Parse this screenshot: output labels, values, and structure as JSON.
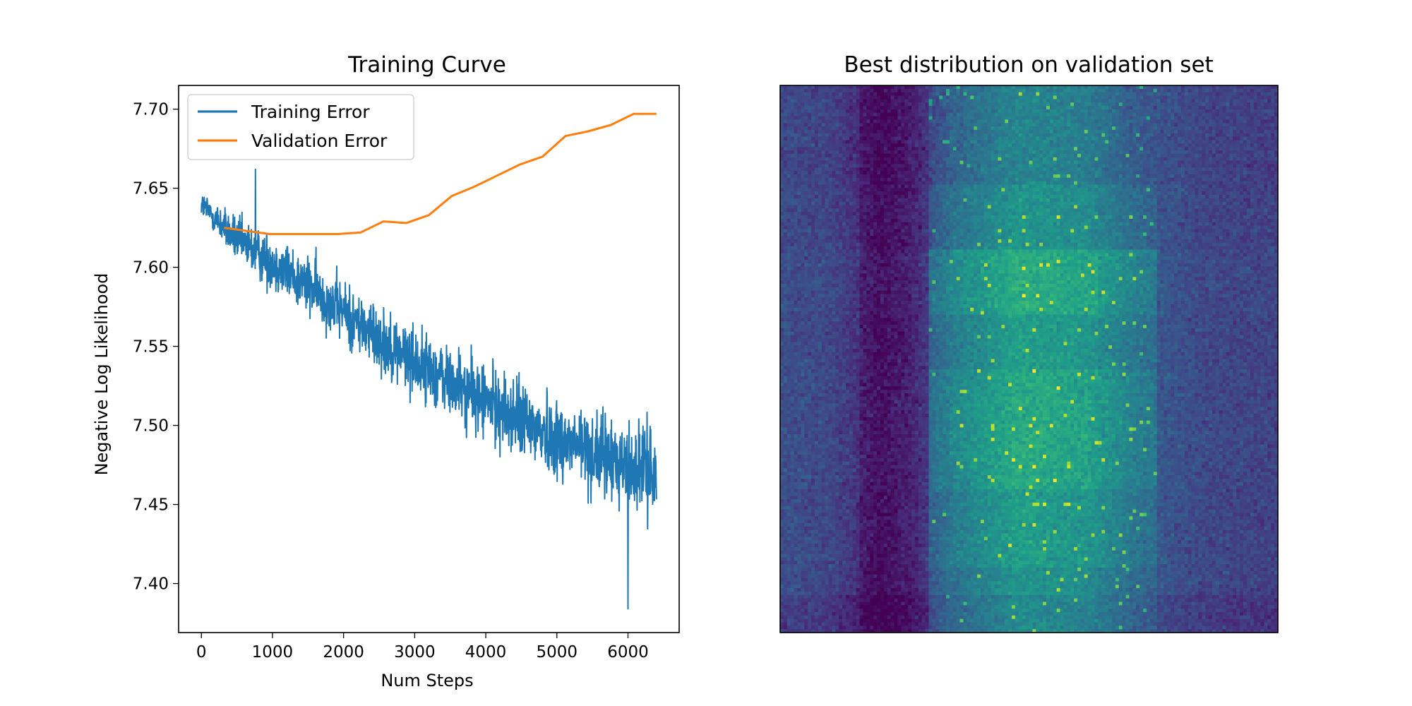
{
  "chart_data": [
    {
      "type": "line",
      "title": "Training Curve",
      "xlabel": "Num Steps",
      "ylabel": "Negative Log Likelihood",
      "xlim": [
        -320,
        6720
      ],
      "ylim": [
        7.369,
        7.715
      ],
      "xticks": [
        0,
        1000,
        2000,
        3000,
        4000,
        5000,
        6000
      ],
      "xtick_labels": [
        "0",
        "1000",
        "2000",
        "3000",
        "4000",
        "5000",
        "6000"
      ],
      "yticks": [
        7.4,
        7.45,
        7.5,
        7.55,
        7.6,
        7.65,
        7.7
      ],
      "ytick_labels": [
        "7.40",
        "7.45",
        "7.50",
        "7.55",
        "7.60",
        "7.65",
        "7.70"
      ],
      "grid": false,
      "legend": "upper-left",
      "series": [
        {
          "name": "Training Error",
          "color": "#1f77b4",
          "style": "noisy",
          "trend_x": [
            0,
            500,
            1000,
            1500,
            2000,
            2500,
            3000,
            3500,
            4000,
            4500,
            5000,
            5500,
            6000,
            6400
          ],
          "trend_y": [
            7.64,
            7.617,
            7.603,
            7.588,
            7.572,
            7.555,
            7.54,
            7.527,
            7.515,
            7.503,
            7.492,
            7.483,
            7.475,
            7.47
          ],
          "noise_amplitude": [
            0.008,
            0.014,
            0.017,
            0.018,
            0.019,
            0.02,
            0.021,
            0.022,
            0.023,
            0.024,
            0.025,
            0.025,
            0.026,
            0.026
          ],
          "max_value": 7.662,
          "min_value": 7.384
        },
        {
          "name": "Validation Error",
          "color": "#ff7f0e",
          "x": [
            320,
            640,
            960,
            1280,
            1600,
            1920,
            2240,
            2560,
            2880,
            3200,
            3520,
            3840,
            4160,
            4480,
            4800,
            5120,
            5440,
            5760,
            6080,
            6400
          ],
          "y": [
            7.625,
            7.623,
            7.621,
            7.621,
            7.621,
            7.621,
            7.622,
            7.629,
            7.628,
            7.633,
            7.645,
            7.651,
            7.658,
            7.665,
            7.67,
            7.683,
            7.686,
            7.69,
            7.697,
            7.697
          ]
        }
      ]
    },
    {
      "type": "heatmap",
      "title": "Best distribution on validation set",
      "colormap": "viridis",
      "colorbar": false,
      "axes_ticks": false,
      "value_range": [
        0,
        1
      ],
      "grid_shape": [
        160,
        144
      ],
      "row_bands": [
        {
          "y_from": 0.0,
          "y_to": 0.18,
          "level": 0.0
        },
        {
          "y_from": 0.18,
          "y_to": 0.3,
          "level": 0.06
        },
        {
          "y_from": 0.3,
          "y_to": 0.42,
          "level": 0.16
        },
        {
          "y_from": 0.42,
          "y_to": 0.52,
          "level": 0.1
        },
        {
          "y_from": 0.52,
          "y_to": 0.74,
          "level": 0.15
        },
        {
          "y_from": 0.74,
          "y_to": 0.88,
          "level": 0.1
        },
        {
          "y_from": 0.88,
          "y_to": 1.0,
          "level": 0.06
        }
      ],
      "column_profile": {
        "x": [
          0.0,
          0.1,
          0.2,
          0.26,
          0.35,
          0.48,
          0.62,
          0.72,
          0.85,
          1.0
        ],
        "level": [
          0.22,
          0.2,
          0.07,
          0.12,
          0.32,
          0.46,
          0.42,
          0.28,
          0.2,
          0.18
        ]
      }
    }
  ]
}
